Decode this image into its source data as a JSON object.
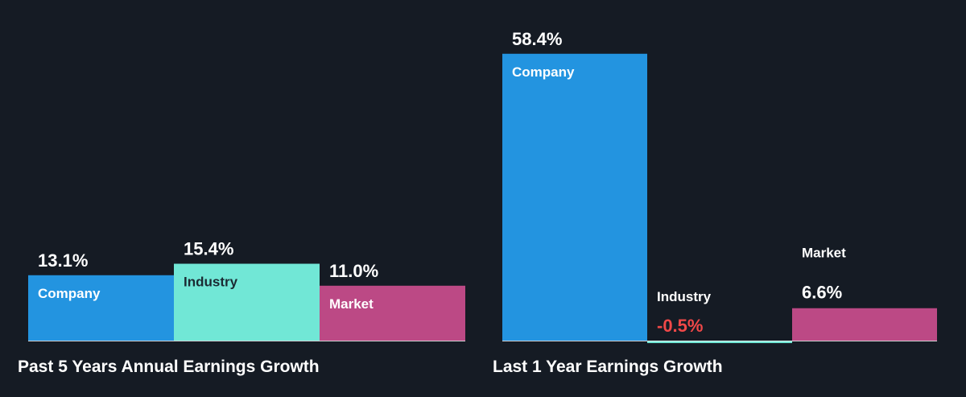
{
  "colors": {
    "background": "#151b24",
    "company": "#2394e0",
    "industry": "#71e7d6",
    "market": "#bc4985",
    "negative": "#f04848",
    "text": "#ffffff",
    "baseline": "#ffffff"
  },
  "chart_data": [
    {
      "type": "bar",
      "title": "Past 5 Years Annual Earnings Growth",
      "categories": [
        "Company",
        "Industry",
        "Market"
      ],
      "values": [
        13.1,
        15.4,
        11.0
      ],
      "value_labels": [
        "13.1%",
        "15.4%",
        "11.0%"
      ],
      "unit": "%",
      "grid": false,
      "legend": "none"
    },
    {
      "type": "bar",
      "title": "Last 1 Year Earnings Growth",
      "categories": [
        "Company",
        "Industry",
        "Market"
      ],
      "values": [
        58.4,
        -0.5,
        6.6
      ],
      "value_labels": [
        "58.4%",
        "-0.5%",
        "6.6%"
      ],
      "unit": "%",
      "grid": false,
      "legend": "none"
    }
  ]
}
